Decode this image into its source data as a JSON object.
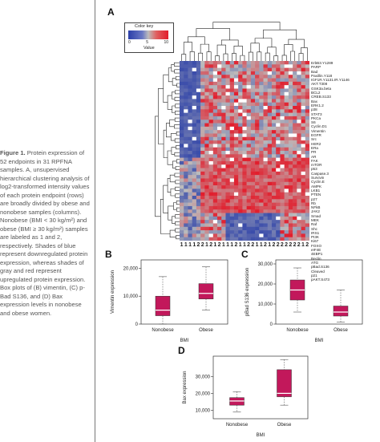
{
  "caption": {
    "lead": "Figure 1.",
    "text": " Protein expression of 52 endpoints in 31 RPFNA samples. A, unsupervised hierarchical clustering analysis of log2-transformed intensity values of each protein endpoint (rows) are broadly divided by obese and nonobese samples (columns). Nonobese (BMI < 30 kg/m²) and obese (BMI ≥ 30 kg/m²) samples are labeled as 1 and 2, respectively. Shades of blue represent downregulated protein expression, whereas shades of gray and red represent upregulated protein expression. Box plots of (B) vimentin, (C) p-Bad S136, and (D) Bax expression levels in nonobese and obese women."
  },
  "panels": {
    "a": "A",
    "b": "B",
    "c": "C",
    "d": "D"
  },
  "color_key": {
    "title": "Color key",
    "xlabel": "Value",
    "ticks": [
      "0",
      "5",
      "10"
    ]
  },
  "heatmap": {
    "gene_labels": [
      "ErbB3.Y1289",
      "PARP",
      "Bad",
      "Paxillin.Y118",
      "IGF1R.Y1131.IR.Y1146",
      "AKT.T308",
      "GSK3a.beta",
      "BCL2",
      "CREB.S133",
      "Bax",
      "ERK1.2",
      "p38",
      "STAT3",
      "PKCa",
      "S6",
      "Cyclin.D1",
      "Vimentin",
      "EGFR",
      "Src",
      "HER2",
      "ERa",
      "PR",
      "AR",
      "FAK",
      "mTOR",
      "p53",
      "Caspase.3",
      "Survivin",
      "Cyclin.E",
      "AMPK",
      "LKB1",
      "PTEN",
      "p27",
      "Rb",
      "NFkB",
      "JAK2",
      "Smad",
      "MEK",
      "Raf",
      "Shc",
      "IRS1",
      "PI3K",
      "Ki67",
      "FOXO",
      "eIF4E",
      "4EBP1",
      "Beclin",
      "ATG",
      "pBad.S136",
      "Cleaved",
      "p21",
      "pAKT.S473"
    ],
    "column_labels": [
      "1",
      "1",
      "1",
      "1",
      "2",
      "2",
      "1",
      "2",
      "1",
      "2",
      "1",
      "1",
      "1",
      "2",
      "1",
      "1",
      "2",
      "2",
      "1",
      "1",
      "2",
      "1",
      "2",
      "2",
      "2",
      "2",
      "2",
      "2",
      "2",
      "1",
      "2"
    ],
    "color_low": "#2b3fa8",
    "color_mid": "#bcbcbc",
    "color_high": "#e21c2b"
  },
  "box_b": {
    "ylabel": "Vimentin expression",
    "xlabel": "BMI",
    "categories": [
      "Nonobese",
      "Obese"
    ],
    "yticks": [
      "0",
      "10,000",
      "20,000"
    ],
    "boxes": [
      {
        "min": 0,
        "q1": 3000,
        "median": 5000,
        "q3": 10000,
        "max": 17000
      },
      {
        "min": 5000,
        "q1": 9000,
        "median": 11000,
        "q3": 14500,
        "max": 20500
      }
    ],
    "ylim": [
      0,
      23000
    ]
  },
  "box_c": {
    "ylabel": "pBad S136 expression",
    "xlabel": "BMI",
    "categories": [
      "Nonobese",
      "Obese"
    ],
    "yticks": [
      "0",
      "10,000",
      "20,000",
      "30,000"
    ],
    "boxes": [
      {
        "min": 6000,
        "q1": 12000,
        "median": 17000,
        "q3": 22000,
        "max": 28000
      },
      {
        "min": 1000,
        "q1": 4000,
        "median": 6000,
        "q3": 9000,
        "max": 17000
      }
    ],
    "ylim": [
      0,
      32000
    ]
  },
  "box_d": {
    "ylabel": "Bax expression",
    "xlabel": "BMI",
    "categories": [
      "Nonobese",
      "Obese"
    ],
    "yticks": [
      "10,000",
      "20,000",
      "30,000"
    ],
    "boxes": [
      {
        "min": 9000,
        "q1": 13000,
        "median": 15500,
        "q3": 17500,
        "max": 21000
      },
      {
        "min": 13000,
        "q1": 18000,
        "median": 20000,
        "q3": 34000,
        "max": 40000
      }
    ],
    "ylim": [
      5000,
      42000
    ]
  }
}
